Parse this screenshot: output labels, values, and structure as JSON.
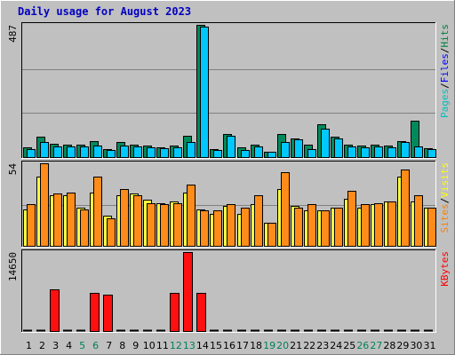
{
  "chart_data": {
    "type": "bar",
    "title": "Daily usage for August 2023",
    "categories": [
      "1",
      "2",
      "3",
      "4",
      "5",
      "6",
      "7",
      "8",
      "9",
      "10",
      "11",
      "12",
      "13",
      "14",
      "15",
      "16",
      "17",
      "18",
      "19",
      "20",
      "21",
      "22",
      "23",
      "24",
      "25",
      "26",
      "27",
      "28",
      "29",
      "30",
      "31"
    ],
    "weekend_days": [
      "5",
      "6",
      "12",
      "13",
      "19",
      "20",
      "26",
      "27"
    ],
    "panels": [
      {
        "id": "hits-files-pages",
        "ymax_label": "487",
        "ylim": [
          0,
          487
        ],
        "legend": [
          {
            "text": "Pages",
            "color": "#00c0c0"
          },
          {
            "text": "/",
            "color": "#000000"
          },
          {
            "text": "Files",
            "color": "#0000ff"
          },
          {
            "text": "/",
            "color": "#000000"
          },
          {
            "text": "Hits",
            "color": "#008040"
          }
        ],
        "series": [
          {
            "name": "Hits",
            "color": "#008a5c",
            "values": [
              35,
              75,
              50,
              45,
              45,
              60,
              30,
              55,
              45,
              42,
              35,
              42,
              80,
              487,
              30,
              85,
              35,
              45,
              20,
              85,
              70,
              45,
              120,
              75,
              45,
              42,
              45,
              42,
              60,
              135,
              32
            ]
          },
          {
            "name": "Files",
            "color": "#00c8ff",
            "values": [
              28,
              55,
              38,
              38,
              38,
              42,
              25,
              42,
              38,
              35,
              32,
              35,
              55,
              480,
              25,
              80,
              25,
              38,
              18,
              55,
              65,
              30,
              105,
              70,
              38,
              35,
              38,
              35,
              55,
              40,
              28
            ]
          }
        ]
      },
      {
        "id": "visits-sites",
        "ymax_label": "54",
        "ylim": [
          0,
          54
        ],
        "legend": [
          {
            "text": "Sites",
            "color": "#ff8000"
          },
          {
            "text": "/",
            "color": "#000000"
          },
          {
            "text": "Visits",
            "color": "#ffff00"
          }
        ],
        "series": [
          {
            "name": "Visits",
            "color": "#ffff40",
            "values": [
              24,
              45,
              33,
              33,
              25,
              35,
              20,
              33,
              34,
              30,
              28,
              29,
              35,
              24,
              21,
              26,
              21,
              27,
              15,
              37,
              26,
              23,
              23,
              25,
              31,
              25,
              27,
              29,
              45,
              29,
              25
            ]
          },
          {
            "name": "Sites",
            "color": "#ff8c1a",
            "values": [
              27,
              54,
              34,
              35,
              24,
              45,
              18,
              37,
              33,
              28,
              27,
              28,
              40,
              23,
              23,
              27,
              25,
              33,
              15,
              48,
              25,
              27,
              23,
              25,
              36,
              27,
              28,
              29,
              50,
              33,
              25
            ]
          }
        ]
      },
      {
        "id": "kbytes",
        "ymax_label": "14650",
        "ylim": [
          0,
          14650
        ],
        "legend": [
          {
            "text": "KBytes",
            "color": "#ff0000"
          }
        ],
        "series": [
          {
            "name": "KBytes",
            "color": "#ff1010",
            "values": [
              0,
              0,
              7700,
              0,
              0,
              7000,
              6800,
              0,
              0,
              0,
              0,
              7000,
              14650,
              7000,
              0,
              0,
              0,
              0,
              0,
              0,
              0,
              0,
              0,
              0,
              0,
              0,
              0,
              0,
              0,
              0,
              0
            ]
          }
        ]
      }
    ]
  }
}
